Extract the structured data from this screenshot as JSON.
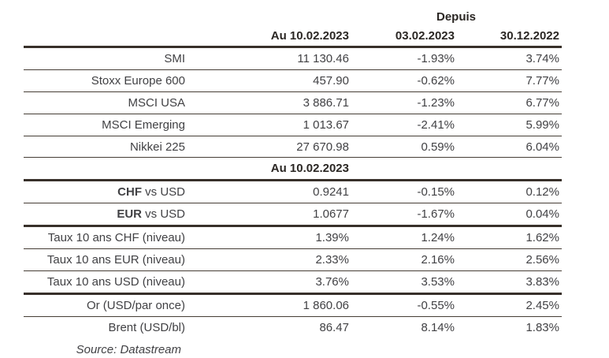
{
  "header": {
    "depuis_label": "Depuis",
    "col_value_date": "Au 10.02.2023",
    "col_since_1": "03.02.2023",
    "col_since_2": "30.12.2022"
  },
  "subheader": {
    "label": "Au 10.02.2023"
  },
  "rows": [
    {
      "label_bold": "",
      "label_rest": "SMI",
      "value": "11 130.46",
      "since_0302": "-1.93%",
      "since_3012": "3.74%"
    },
    {
      "label_bold": "",
      "label_rest": "Stoxx Europe 600",
      "value": "457.90",
      "since_0302": "-0.62%",
      "since_3012": "7.77%"
    },
    {
      "label_bold": "",
      "label_rest": "MSCI USA",
      "value": "3 886.71",
      "since_0302": "-1.23%",
      "since_3012": "6.77%"
    },
    {
      "label_bold": "",
      "label_rest": "MSCI Emerging",
      "value": "1 013.67",
      "since_0302": "-2.41%",
      "since_3012": "5.99%"
    },
    {
      "label_bold": "",
      "label_rest": "Nikkei 225",
      "value": "27 670.98",
      "since_0302": "0.59%",
      "since_3012": "6.04%"
    },
    {
      "label_bold": "CHF",
      "label_rest": " vs USD",
      "value": "0.9241",
      "since_0302": "-0.15%",
      "since_3012": "0.12%"
    },
    {
      "label_bold": "EUR",
      "label_rest": " vs USD",
      "value": "1.0677",
      "since_0302": "-1.67%",
      "since_3012": "0.04%"
    },
    {
      "label_bold": "",
      "label_rest": "Taux 10 ans CHF (niveau)",
      "value": "1.39%",
      "since_0302": "1.24%",
      "since_3012": "1.62%"
    },
    {
      "label_bold": "",
      "label_rest": "Taux 10 ans EUR (niveau)",
      "value": "2.33%",
      "since_0302": "2.16%",
      "since_3012": "2.56%"
    },
    {
      "label_bold": "",
      "label_rest": "Taux 10 ans USD (niveau)",
      "value": "3.76%",
      "since_0302": "3.53%",
      "since_3012": "3.83%"
    },
    {
      "label_bold": "",
      "label_rest": "Or (USD/par once)",
      "value": "1 860.06",
      "since_0302": "-0.55%",
      "since_3012": "2.45%"
    },
    {
      "label_bold": "",
      "label_rest": "Brent (USD/bl)",
      "value": "86.47",
      "since_0302": "8.14%",
      "since_3012": "1.83%"
    }
  ],
  "source": "Source: Datastream",
  "colors": {
    "rule_thick": "#38302a",
    "rule_thin": "#453d35",
    "text": "#414144",
    "header_text": "#2b2724",
    "background": "#ffffff"
  }
}
